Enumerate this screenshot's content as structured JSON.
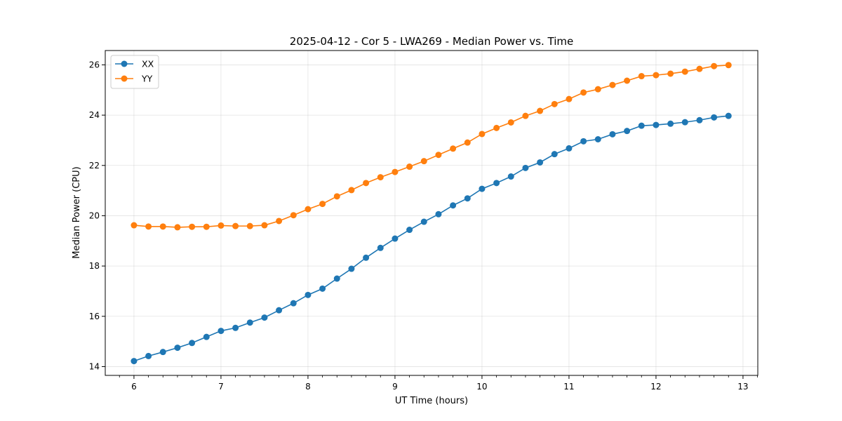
{
  "chart_data": {
    "type": "line",
    "title": "2025-04-12 - Cor 5 - LWA269 - Median Power vs. Time",
    "xlabel": "UT Time (hours)",
    "ylabel": "Median Power (CPU)",
    "xlim": [
      5.67,
      13.17
    ],
    "ylim": [
      13.65,
      26.57
    ],
    "xticks": [
      6,
      7,
      8,
      9,
      10,
      11,
      12,
      13
    ],
    "yticks": [
      14,
      16,
      18,
      20,
      22,
      24,
      26
    ],
    "x": [
      6.0,
      6.1667,
      6.3333,
      6.5,
      6.6667,
      6.8333,
      7.0,
      7.1667,
      7.3333,
      7.5,
      7.6667,
      7.8333,
      8.0,
      8.1667,
      8.3333,
      8.5,
      8.6667,
      8.8333,
      9.0,
      9.1667,
      9.3333,
      9.5,
      9.6667,
      9.8333,
      10.0,
      10.1667,
      10.3333,
      10.5,
      10.6667,
      10.8333,
      11.0,
      11.1667,
      11.3333,
      11.5,
      11.6667,
      11.8333,
      12.0,
      12.1667,
      12.3333,
      12.5,
      12.6667,
      12.8333
    ],
    "series": [
      {
        "name": "XX",
        "color": "#1f77b4",
        "values": [
          14.22,
          14.42,
          14.58,
          14.75,
          14.94,
          15.18,
          15.42,
          15.54,
          15.75,
          15.95,
          16.24,
          16.52,
          16.85,
          17.1,
          17.5,
          17.89,
          18.33,
          18.72,
          19.09,
          19.44,
          19.76,
          20.06,
          20.41,
          20.69,
          21.07,
          21.3,
          21.56,
          21.9,
          22.12,
          22.45,
          22.68,
          22.96,
          23.04,
          23.24,
          23.37,
          23.58,
          23.61,
          23.66,
          23.72,
          23.8,
          23.91,
          23.97
        ]
      },
      {
        "name": "YY",
        "color": "#ff7f0e",
        "values": [
          19.62,
          19.57,
          19.57,
          19.54,
          19.56,
          19.56,
          19.61,
          19.59,
          19.59,
          19.62,
          19.79,
          20.02,
          20.26,
          20.47,
          20.77,
          21.02,
          21.3,
          21.53,
          21.74,
          21.95,
          22.17,
          22.42,
          22.67,
          22.91,
          23.25,
          23.49,
          23.71,
          23.97,
          24.17,
          24.44,
          24.64,
          24.9,
          25.03,
          25.2,
          25.37,
          25.55,
          25.59,
          25.65,
          25.73,
          25.84,
          25.95,
          25.99
        ]
      }
    ],
    "grid": true,
    "legend_position": "top-left"
  }
}
